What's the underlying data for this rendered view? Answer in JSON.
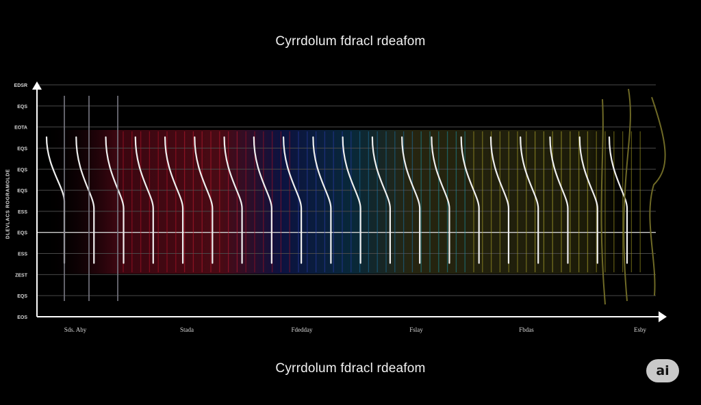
{
  "chart_data": {
    "type": "line",
    "title": "Cyrrdolum fdracl rdeafom",
    "caption": "Cyrrdolum fdracl rdeafom",
    "ylabel": "DLEVLACS ROGRAMOLDE",
    "yticks": [
      "EDSR",
      "EQS",
      "EOTA",
      "EQS",
      "EQS",
      "EQS",
      "ESS",
      "EQS",
      "ESS",
      "ZEST",
      "EQS",
      "EOS"
    ],
    "xticks": [
      "Sds. Aby",
      "Stada",
      "Fdedday",
      "Fslay",
      "Fbdas",
      "Esby"
    ],
    "grid": true,
    "series_color_bands": [
      "#c01028",
      "#2040b0",
      "#1a8aa0",
      "#c8c030"
    ],
    "series": [
      {
        "name": "",
        "values": [
          0.95,
          0.6,
          0.05
        ],
        "color": "#f0f0f0"
      },
      {
        "name": "",
        "values": [
          0.95,
          0.55,
          0.05
        ],
        "color": "#f0f0f0"
      },
      {
        "name": "",
        "values": [
          0.95,
          0.55,
          0.05
        ],
        "color": "#f0f0f0"
      },
      {
        "name": "",
        "values": [
          0.95,
          0.55,
          0.05
        ],
        "color": "#f0f0f0"
      },
      {
        "name": "",
        "values": [
          0.95,
          0.55,
          0.05
        ],
        "color": "#f0f0f0"
      },
      {
        "name": "",
        "values": [
          0.95,
          0.55,
          0.05
        ],
        "color": "#f0f0f0"
      },
      {
        "name": "",
        "values": [
          0.95,
          0.55,
          0.05
        ],
        "color": "#f0f0f0"
      },
      {
        "name": "",
        "values": [
          0.95,
          0.55,
          0.05
        ],
        "color": "#f0f0f0"
      },
      {
        "name": "",
        "values": [
          0.95,
          0.55,
          0.05
        ],
        "color": "#f0f0f0"
      },
      {
        "name": "",
        "values": [
          0.95,
          0.55,
          0.05
        ],
        "color": "#f0f0f0"
      },
      {
        "name": "",
        "values": [
          0.95,
          0.55,
          0.05
        ],
        "color": "#f0f0f0"
      },
      {
        "name": "",
        "values": [
          0.95,
          0.55,
          0.05
        ],
        "color": "#f0f0f0"
      },
      {
        "name": "",
        "values": [
          0.95,
          0.55,
          0.05
        ],
        "color": "#f0f0f0"
      },
      {
        "name": "",
        "values": [
          0.95,
          0.55,
          0.05
        ],
        "color": "#f0f0f0"
      },
      {
        "name": "",
        "values": [
          0.95,
          0.55,
          0.05
        ],
        "color": "#f0f0f0"
      },
      {
        "name": "",
        "values": [
          0.95,
          0.55,
          0.05
        ],
        "color": "#f0f0f0"
      },
      {
        "name": "",
        "values": [
          0.95,
          0.55,
          0.05
        ],
        "color": "#f0f0f0"
      },
      {
        "name": "",
        "values": [
          0.95,
          0.55,
          0.05
        ],
        "color": "#f0f0f0"
      },
      {
        "name": "",
        "values": [
          0.95,
          0.55,
          0.05
        ],
        "color": "#f0f0f0"
      },
      {
        "name": "",
        "values": [
          0.95,
          0.55,
          0.05
        ],
        "color": "#f0f0f0"
      }
    ]
  },
  "badge": {
    "label": "ai"
  }
}
